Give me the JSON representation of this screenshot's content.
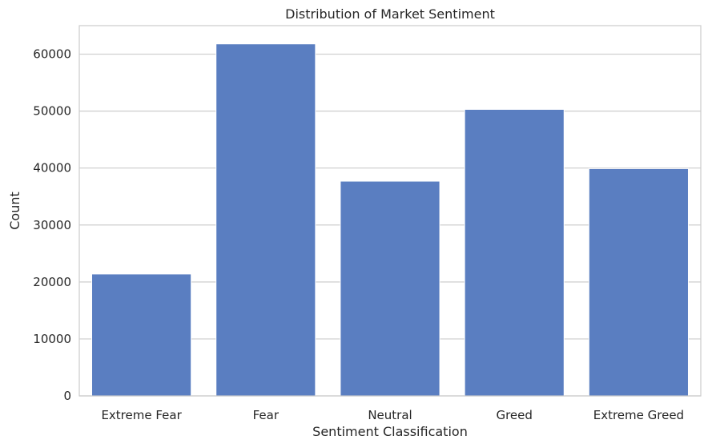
{
  "chart_data": {
    "type": "bar",
    "title": "Distribution of Market Sentiment",
    "xlabel": "Sentiment Classification",
    "ylabel": "Count",
    "categories": [
      "Extreme Fear",
      "Fear",
      "Neutral",
      "Greed",
      "Extreme Greed"
    ],
    "values": [
      21400,
      61800,
      37700,
      50300,
      39900
    ],
    "ylim": [
      0,
      65000
    ],
    "yticks": [
      "0",
      "10000",
      "20000",
      "30000",
      "40000",
      "50000",
      "60000"
    ],
    "ytick_values": [
      0,
      10000,
      20000,
      30000,
      40000,
      50000,
      60000
    ],
    "grid": "horizontal",
    "bar_color": "#5a7ec1"
  }
}
